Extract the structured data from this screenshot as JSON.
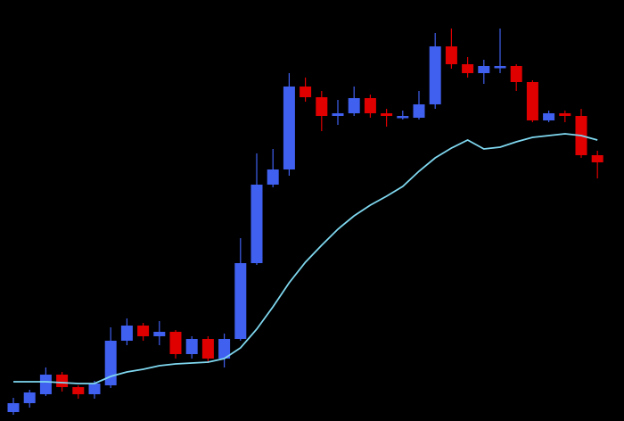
{
  "chart_data": {
    "type": "candlestick",
    "title": "",
    "xlabel": "",
    "ylabel": "",
    "ylim": [
      0,
      472
    ],
    "grid": false,
    "legend": "none",
    "colors": {
      "background": "#000000",
      "up": "#4060f0",
      "down": "#e00000",
      "moving_average": "#7fd8f0"
    },
    "candles": [
      {
        "x": 1,
        "open": 10,
        "close": 20,
        "high": 26,
        "low": 7
      },
      {
        "x": 2,
        "open": 20,
        "close": 32,
        "high": 35,
        "low": 15
      },
      {
        "x": 3,
        "open": 30,
        "close": 52,
        "high": 60,
        "low": 28
      },
      {
        "x": 4,
        "open": 52,
        "close": 38,
        "high": 55,
        "low": 33
      },
      {
        "x": 5,
        "open": 38,
        "close": 30,
        "high": 40,
        "low": 25
      },
      {
        "x": 6,
        "open": 30,
        "close": 42,
        "high": 45,
        "low": 25
      },
      {
        "x": 7,
        "open": 40,
        "close": 90,
        "high": 105,
        "low": 37
      },
      {
        "x": 8,
        "open": 90,
        "close": 107,
        "high": 115,
        "low": 85
      },
      {
        "x": 9,
        "open": 107,
        "close": 95,
        "high": 110,
        "low": 90
      },
      {
        "x": 10,
        "open": 95,
        "close": 100,
        "high": 112,
        "low": 85
      },
      {
        "x": 11,
        "open": 100,
        "close": 75,
        "high": 102,
        "low": 70
      },
      {
        "x": 12,
        "open": 75,
        "close": 92,
        "high": 95,
        "low": 70
      },
      {
        "x": 13,
        "open": 92,
        "close": 70,
        "high": 95,
        "low": 65
      },
      {
        "x": 14,
        "open": 70,
        "close": 92,
        "high": 98,
        "low": 60
      },
      {
        "x": 15,
        "open": 92,
        "close": 177,
        "high": 205,
        "low": 90
      },
      {
        "x": 16,
        "open": 177,
        "close": 265,
        "high": 300,
        "low": 175
      },
      {
        "x": 17,
        "open": 265,
        "close": 282,
        "high": 305,
        "low": 262
      },
      {
        "x": 18,
        "open": 282,
        "close": 375,
        "high": 390,
        "low": 275
      },
      {
        "x": 19,
        "open": 375,
        "close": 363,
        "high": 385,
        "low": 358
      },
      {
        "x": 20,
        "open": 363,
        "close": 342,
        "high": 370,
        "low": 325
      },
      {
        "x": 21,
        "open": 342,
        "close": 345,
        "high": 360,
        "low": 332
      },
      {
        "x": 22,
        "open": 345,
        "close": 362,
        "high": 375,
        "low": 342
      },
      {
        "x": 23,
        "open": 362,
        "close": 345,
        "high": 366,
        "low": 340
      },
      {
        "x": 24,
        "open": 345,
        "close": 342,
        "high": 350,
        "low": 330
      },
      {
        "x": 25,
        "open": 342,
        "close": 342,
        "high": 348,
        "low": 338
      },
      {
        "x": 26,
        "open": 340,
        "close": 355,
        "high": 370,
        "low": 338
      },
      {
        "x": 27,
        "open": 355,
        "close": 420,
        "high": 435,
        "low": 350
      },
      {
        "x": 28,
        "open": 420,
        "close": 400,
        "high": 440,
        "low": 395
      },
      {
        "x": 29,
        "open": 400,
        "close": 390,
        "high": 408,
        "low": 385
      },
      {
        "x": 30,
        "open": 390,
        "close": 398,
        "high": 405,
        "low": 378
      },
      {
        "x": 31,
        "open": 398,
        "close": 398,
        "high": 440,
        "low": 390
      },
      {
        "x": 32,
        "open": 398,
        "close": 380,
        "high": 400,
        "low": 370
      },
      {
        "x": 33,
        "open": 380,
        "close": 337,
        "high": 382,
        "low": 335
      },
      {
        "x": 34,
        "open": 337,
        "close": 345,
        "high": 348,
        "low": 335
      },
      {
        "x": 35,
        "open": 345,
        "close": 342,
        "high": 348,
        "low": 335
      },
      {
        "x": 36,
        "open": 342,
        "close": 298,
        "high": 350,
        "low": 295
      },
      {
        "x": 37,
        "open": 298,
        "close": 290,
        "high": 303,
        "low": 272
      }
    ],
    "moving_average": [
      {
        "x": 1,
        "y": 44
      },
      {
        "x": 2,
        "y": 44
      },
      {
        "x": 3,
        "y": 44
      },
      {
        "x": 4,
        "y": 43
      },
      {
        "x": 5,
        "y": 42
      },
      {
        "x": 6,
        "y": 42
      },
      {
        "x": 7,
        "y": 50
      },
      {
        "x": 8,
        "y": 55
      },
      {
        "x": 9,
        "y": 58
      },
      {
        "x": 10,
        "y": 62
      },
      {
        "x": 11,
        "y": 64
      },
      {
        "x": 12,
        "y": 65
      },
      {
        "x": 13,
        "y": 66
      },
      {
        "x": 14,
        "y": 70
      },
      {
        "x": 15,
        "y": 82
      },
      {
        "x": 16,
        "y": 103
      },
      {
        "x": 17,
        "y": 128
      },
      {
        "x": 18,
        "y": 155
      },
      {
        "x": 19,
        "y": 178
      },
      {
        "x": 20,
        "y": 197
      },
      {
        "x": 21,
        "y": 215
      },
      {
        "x": 22,
        "y": 230
      },
      {
        "x": 23,
        "y": 242
      },
      {
        "x": 24,
        "y": 252
      },
      {
        "x": 25,
        "y": 263
      },
      {
        "x": 26,
        "y": 280
      },
      {
        "x": 27,
        "y": 295
      },
      {
        "x": 28,
        "y": 306
      },
      {
        "x": 29,
        "y": 315
      },
      {
        "x": 30,
        "y": 305
      },
      {
        "x": 31,
        "y": 307
      },
      {
        "x": 32,
        "y": 313
      },
      {
        "x": 33,
        "y": 318
      },
      {
        "x": 34,
        "y": 320
      },
      {
        "x": 35,
        "y": 322
      },
      {
        "x": 36,
        "y": 320
      },
      {
        "x": 37,
        "y": 315
      }
    ]
  }
}
